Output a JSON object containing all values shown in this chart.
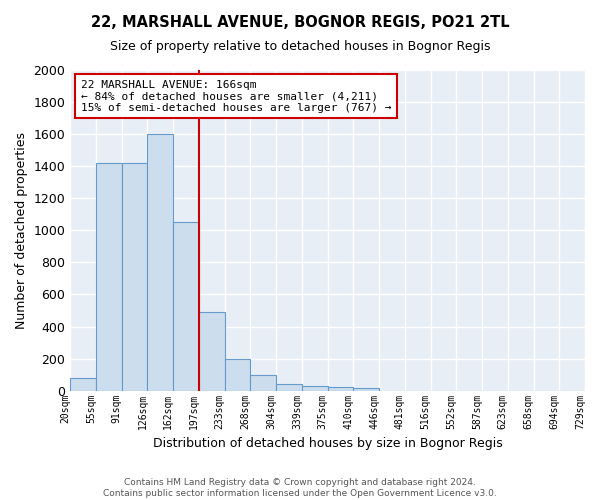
{
  "title1": "22, MARSHALL AVENUE, BOGNOR REGIS, PO21 2TL",
  "title2": "Size of property relative to detached houses in Bognor Regis",
  "xlabel": "Distribution of detached houses by size in Bognor Regis",
  "ylabel": "Number of detached properties",
  "bin_labels": [
    "20sqm",
    "55sqm",
    "91sqm",
    "126sqm",
    "162sqm",
    "197sqm",
    "233sqm",
    "268sqm",
    "304sqm",
    "339sqm",
    "375sqm",
    "410sqm",
    "446sqm",
    "481sqm",
    "516sqm",
    "552sqm",
    "587sqm",
    "623sqm",
    "658sqm",
    "694sqm",
    "729sqm"
  ],
  "bar_heights": [
    80,
    1420,
    1420,
    1600,
    1050,
    490,
    200,
    100,
    40,
    30,
    20,
    15,
    0,
    0,
    0,
    0,
    0,
    0,
    0,
    0
  ],
  "bar_color": "#ccdded",
  "bar_edge_color": "#6699cc",
  "annotation_text": "22 MARSHALL AVENUE: 166sqm\n← 84% of detached houses are smaller (4,211)\n15% of semi-detached houses are larger (767) →",
  "annotation_box_color": "white",
  "annotation_box_edge_color": "#cc0000",
  "ylim": [
    0,
    2000
  ],
  "yticks": [
    0,
    200,
    400,
    600,
    800,
    1000,
    1200,
    1400,
    1600,
    1800,
    2000
  ],
  "background_color": "#e8eef6",
  "grid_color": "white",
  "footer1": "Contains HM Land Registry data © Crown copyright and database right 2024.",
  "footer2": "Contains public sector information licensed under the Open Government Licence v3.0."
}
